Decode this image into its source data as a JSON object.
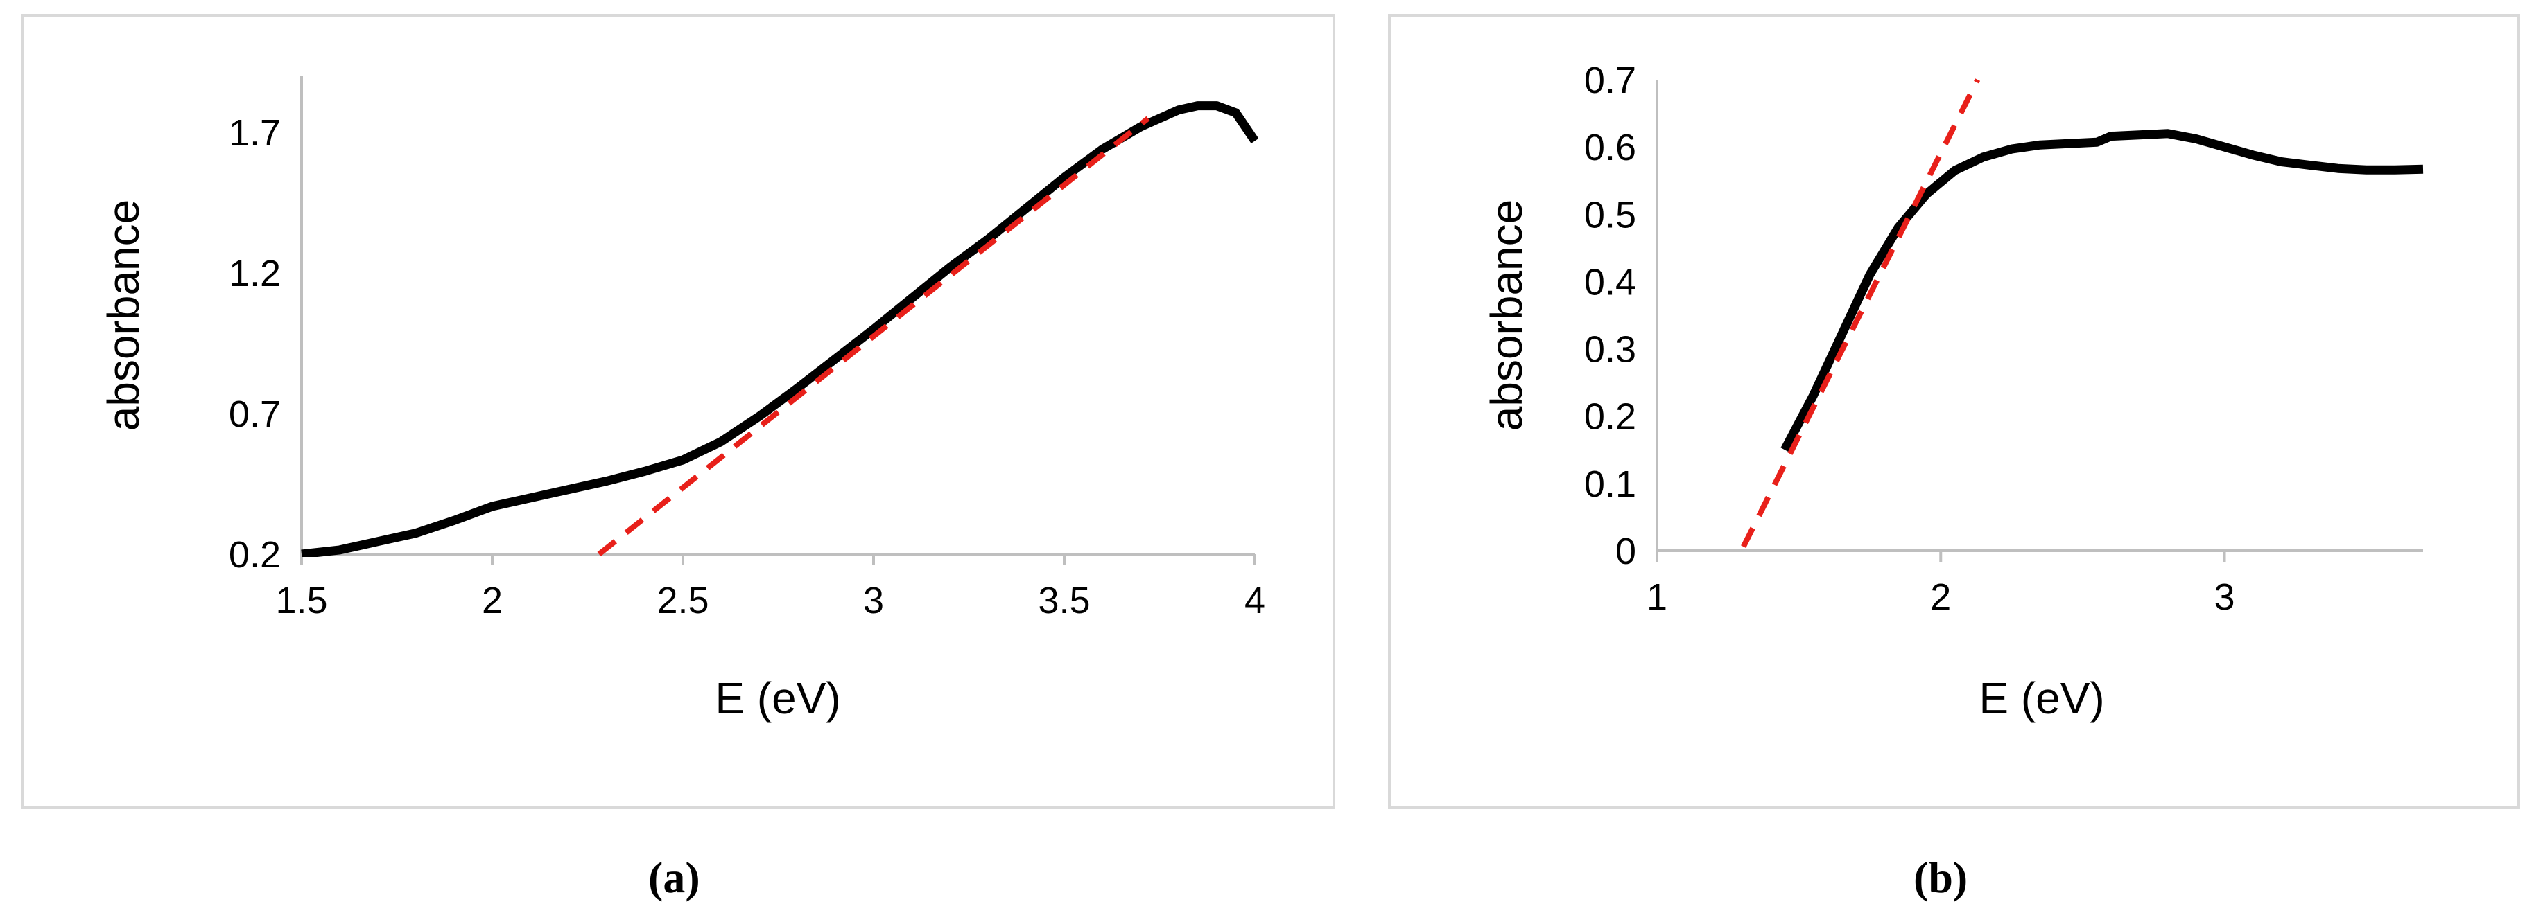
{
  "captions": [
    "(a)",
    "(b)"
  ],
  "chart_data": [
    {
      "type": "line",
      "title": "",
      "xlabel": "E (eV)",
      "ylabel": "absorbance",
      "xlim": [
        1.5,
        4
      ],
      "ylim": [
        0.2,
        1.9
      ],
      "xticks": [
        "1.5",
        "2",
        "2.5",
        "3",
        "3.5",
        "4"
      ],
      "xtick_values": [
        1.5,
        2,
        2.5,
        3,
        3.5,
        4
      ],
      "yticks": [
        "0.2",
        "0.7",
        "1.2",
        "1.7"
      ],
      "ytick_values": [
        0.2,
        0.7,
        1.2,
        1.7
      ],
      "grid": false,
      "legend": "none",
      "series": [
        {
          "style": "solid",
          "color": "#000000",
          "x": [
            1.5,
            1.6,
            1.7,
            1.8,
            1.9,
            2.0,
            2.1,
            2.2,
            2.3,
            2.4,
            2.5,
            2.6,
            2.7,
            2.8,
            2.9,
            3.0,
            3.1,
            3.2,
            3.3,
            3.4,
            3.5,
            3.6,
            3.7,
            3.8,
            3.85,
            3.9,
            3.95,
            4.0
          ],
          "y": [
            0.2,
            0.215,
            0.245,
            0.275,
            0.32,
            0.37,
            0.4,
            0.43,
            0.46,
            0.495,
            0.535,
            0.6,
            0.69,
            0.79,
            0.895,
            1.0,
            1.11,
            1.22,
            1.32,
            1.43,
            1.54,
            1.64,
            1.72,
            1.78,
            1.795,
            1.795,
            1.77,
            1.67
          ]
        },
        {
          "style": "dashed",
          "color": "#e8201a",
          "x": [
            2.28,
            3.72
          ],
          "y": [
            0.2,
            1.75
          ]
        }
      ]
    },
    {
      "type": "line",
      "title": "",
      "xlabel": "E (eV)",
      "ylabel": "absorbance",
      "xlim": [
        1,
        3.7
      ],
      "ylim": [
        0,
        0.7
      ],
      "xticks": [
        "1",
        "2",
        "3"
      ],
      "xtick_values": [
        1,
        2,
        3
      ],
      "yticks": [
        "0",
        "0.1",
        "0.2",
        "0.3",
        "0.4",
        "0.5",
        "0.6",
        "0.7"
      ],
      "ytick_values": [
        0,
        0.1,
        0.2,
        0.3,
        0.4,
        0.5,
        0.6,
        0.7
      ],
      "grid": false,
      "legend": "none",
      "series": [
        {
          "style": "solid",
          "color": "#000000",
          "x": [
            1.45,
            1.55,
            1.65,
            1.75,
            1.85,
            1.95,
            2.05,
            2.15,
            2.25,
            2.35,
            2.45,
            2.55,
            2.6,
            2.7,
            2.8,
            2.9,
            3.0,
            3.1,
            3.2,
            3.3,
            3.4,
            3.5,
            3.6,
            3.7
          ],
          "y": [
            0.15,
            0.23,
            0.32,
            0.41,
            0.48,
            0.53,
            0.565,
            0.585,
            0.597,
            0.603,
            0.605,
            0.607,
            0.616,
            0.618,
            0.62,
            0.612,
            0.6,
            0.588,
            0.578,
            0.573,
            0.568,
            0.566,
            0.566,
            0.567
          ]
        },
        {
          "style": "dashed",
          "color": "#e8201a",
          "x": [
            1.25,
            2.13
          ],
          "y": [
            -0.04,
            0.7
          ]
        }
      ]
    }
  ]
}
